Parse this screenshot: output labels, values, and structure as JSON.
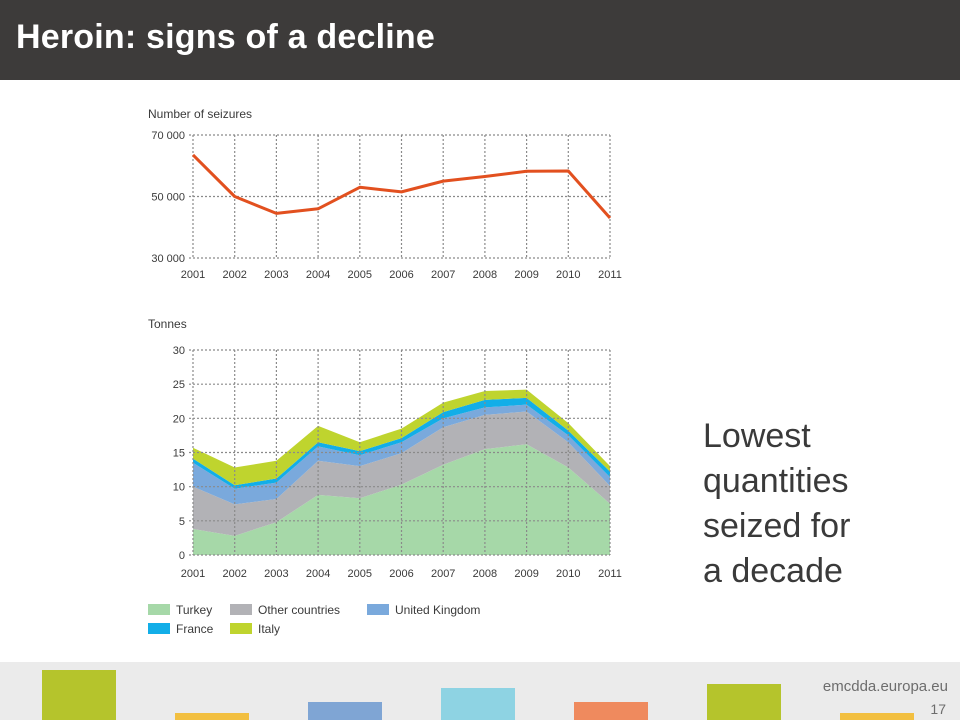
{
  "slide": {
    "title": "Heroin: signs of a decline",
    "caption_lines": [
      "Lowest",
      "quantities",
      "seized for",
      "a decade"
    ],
    "footer_url": "emcdda.europa.eu",
    "page_number": "17",
    "footer_colors": [
      "#b5c42c",
      "#f2bf40",
      "#7fa5d4",
      "#8ed3e3",
      "#ef8a5e",
      "#b5c42c",
      "#f2bf40"
    ]
  },
  "chart_data": [
    {
      "type": "line",
      "ylabel": "Number of seizures",
      "x": [
        "2001",
        "2002",
        "2003",
        "2004",
        "2005",
        "2006",
        "2007",
        "2008",
        "2009",
        "2010",
        "2011"
      ],
      "series": [
        {
          "values": [
            63500,
            50000,
            44500,
            46000,
            53000,
            51500,
            55000,
            56500,
            58200,
            58300,
            43000
          ],
          "color": "#e2501f"
        }
      ],
      "ylim": [
        30000,
        70000
      ],
      "yticks": [
        30000,
        50000,
        70000
      ],
      "ytick_labels": [
        "30 000",
        "50 000",
        "70 000"
      ],
      "grid": true
    },
    {
      "type": "area",
      "stacked": true,
      "ylabel": "Tonnes",
      "x": [
        "2001",
        "2002",
        "2003",
        "2004",
        "2005",
        "2006",
        "2007",
        "2008",
        "2009",
        "2010",
        "2011"
      ],
      "series": [
        {
          "name": "Turkey",
          "values": [
            3.8,
            2.8,
            4.8,
            8.8,
            8.3,
            10.3,
            13.2,
            15.5,
            16.2,
            12.8,
            7.5
          ],
          "color": "#a6d8a8"
        },
        {
          "name": "Other countries",
          "values": [
            6.2,
            4.6,
            3.4,
            5.0,
            4.7,
            4.6,
            5.5,
            5.0,
            4.8,
            3.7,
            2.6
          ],
          "color": "#b2b2b6"
        },
        {
          "name": "United Kingdom",
          "values": [
            3.5,
            2.3,
            2.4,
            2.1,
            1.6,
            1.6,
            1.3,
            1.1,
            1.0,
            1.0,
            1.3
          ],
          "color": "#7aa9dc"
        },
        {
          "name": "France",
          "values": [
            0.6,
            0.5,
            0.6,
            0.6,
            0.6,
            0.6,
            0.9,
            1.1,
            1.0,
            0.7,
            0.8
          ],
          "color": "#12aee8"
        },
        {
          "name": "Italy",
          "values": [
            1.6,
            2.6,
            2.6,
            2.4,
            1.3,
            1.4,
            1.4,
            1.3,
            1.2,
            1.1,
            0.8
          ],
          "color": "#bfd42e"
        }
      ],
      "ylim": [
        0,
        30
      ],
      "yticks": [
        0,
        5,
        10,
        15,
        20,
        25,
        30
      ],
      "legend": "bottom",
      "grid": true
    }
  ]
}
